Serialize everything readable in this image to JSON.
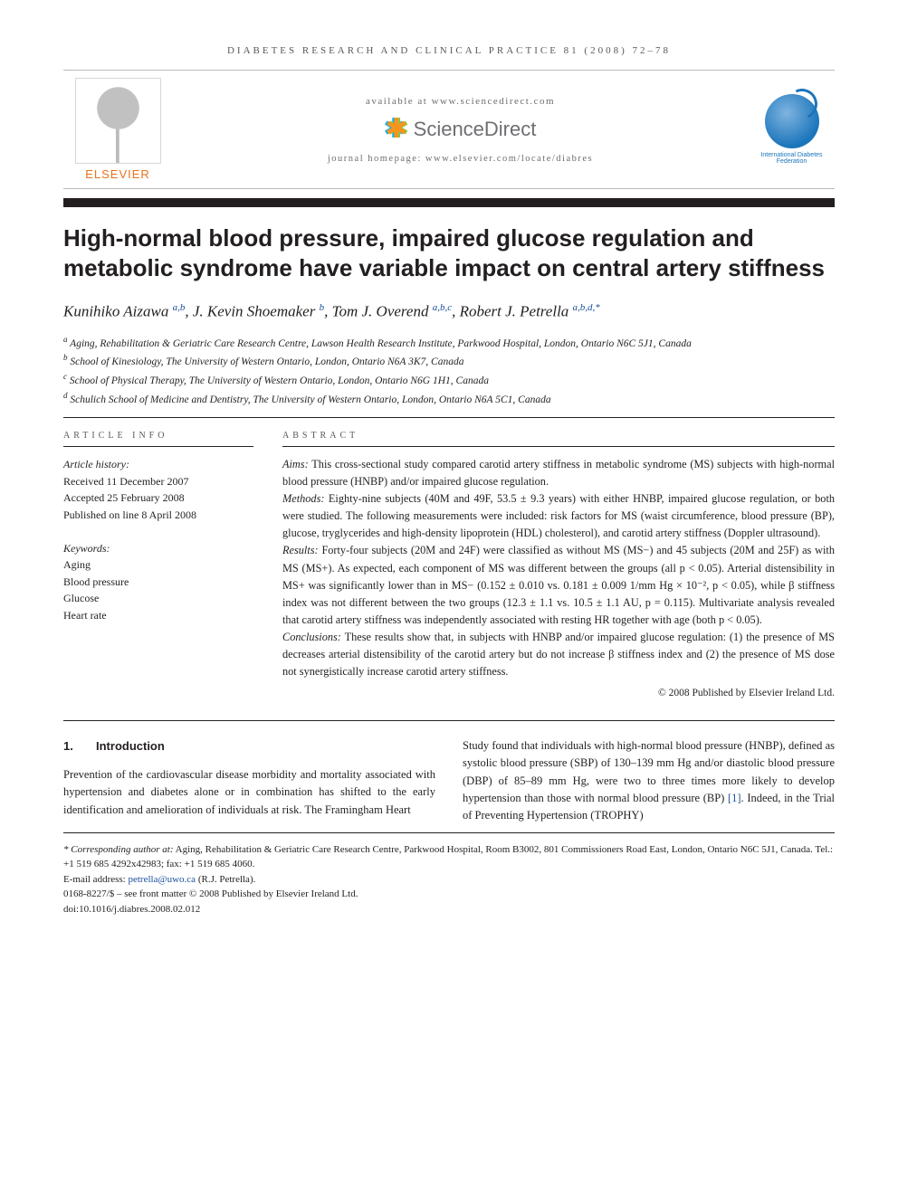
{
  "running_head": "DIABETES RESEARCH AND CLINICAL PRACTICE 81 (2008) 72–78",
  "masthead": {
    "publisher": "ELSEVIER",
    "available_line": "available at www.sciencedirect.com",
    "sd_brand": "ScienceDirect",
    "homepage_line": "journal homepage: www.elsevier.com/locate/diabres",
    "society": "International Diabetes Federation"
  },
  "title": "High-normal blood pressure, impaired glucose regulation and metabolic syndrome have variable impact on central artery stiffness",
  "authors_html": "Kunihiko Aizawa|a,b|, J. Kevin Shoemaker|b|, Tom J. Overend|a,b,c|, Robert J. Petrella|a,b,d,*|",
  "authors": [
    {
      "name": "Kunihiko Aizawa",
      "marks": "a,b"
    },
    {
      "name": "J. Kevin Shoemaker",
      "marks": "b"
    },
    {
      "name": "Tom J. Overend",
      "marks": "a,b,c"
    },
    {
      "name": "Robert J. Petrella",
      "marks": "a,b,d,*"
    }
  ],
  "affiliations": [
    {
      "mark": "a",
      "text": "Aging, Rehabilitation & Geriatric Care Research Centre, Lawson Health Research Institute, Parkwood Hospital, London, Ontario N6C 5J1, Canada"
    },
    {
      "mark": "b",
      "text": "School of Kinesiology, The University of Western Ontario, London, Ontario N6A 3K7, Canada"
    },
    {
      "mark": "c",
      "text": "School of Physical Therapy, The University of Western Ontario, London, Ontario N6G 1H1, Canada"
    },
    {
      "mark": "d",
      "text": "Schulich School of Medicine and Dentistry, The University of Western Ontario, London, Ontario N6A 5C1, Canada"
    }
  ],
  "info": {
    "label": "ARTICLE INFO",
    "history_hd": "Article history:",
    "history": [
      "Received 11 December 2007",
      "Accepted 25 February 2008",
      "Published on line 8 April 2008"
    ],
    "keywords_hd": "Keywords:",
    "keywords": [
      "Aging",
      "Blood pressure",
      "Glucose",
      "Heart rate"
    ]
  },
  "abstract": {
    "label": "ABSTRACT",
    "aims_hd": "Aims:",
    "aims": "This cross-sectional study compared carotid artery stiffness in metabolic syndrome (MS) subjects with high-normal blood pressure (HNBP) and/or impaired glucose regulation.",
    "methods_hd": "Methods:",
    "methods": "Eighty-nine subjects (40M and 49F, 53.5 ± 9.3 years) with either HNBP, impaired glucose regulation, or both were studied. The following measurements were included: risk factors for MS (waist circumference, blood pressure (BP), glucose, tryglycerides and high-density lipoprotein (HDL) cholesterol), and carotid artery stiffness (Doppler ultrasound).",
    "results_hd": "Results:",
    "results": "Forty-four subjects (20M and 24F) were classified as without MS (MS−) and 45 subjects (20M and 25F) as with MS (MS+). As expected, each component of MS was different between the groups (all p < 0.05). Arterial distensibility in MS+ was significantly lower than in MS− (0.152 ± 0.010 vs. 0.181 ± 0.009 1/mm Hg × 10⁻², p < 0.05), while β stiffness index was not different between the two groups (12.3 ± 1.1 vs. 10.5 ± 1.1 AU, p = 0.115). Multivariate analysis revealed that carotid artery stiffness was independently associated with resting HR together with age (both p < 0.05).",
    "conclusions_hd": "Conclusions:",
    "conclusions": "These results show that, in subjects with HNBP and/or impaired glucose regulation: (1) the presence of MS decreases arterial distensibility of the carotid artery but do not increase β stiffness index and (2) the presence of MS dose not synergistically increase carotid artery stiffness.",
    "copyright": "© 2008 Published by Elsevier Ireland Ltd."
  },
  "section1": {
    "num": "1.",
    "title": "Introduction",
    "left_para": "Prevention of the cardiovascular disease morbidity and mortality associated with hypertension and diabetes alone or in combination has shifted to the early identification and amelioration of individuals at risk. The Framingham Heart",
    "right_para_a": "Study found that individuals with high-normal blood pressure (HNBP), defined as systolic blood pressure (SBP) of 130–139 mm Hg and/or diastolic blood pressure (DBP) of 85–89 mm Hg, were two to three times more likely to develop hypertension than those with normal blood pressure (BP) ",
    "ref1": "[1]",
    "right_para_b": ". Indeed, in the Trial of Preventing Hypertension (TROPHY)"
  },
  "footnotes": {
    "corr_label": "* Corresponding author at:",
    "corr_text": " Aging, Rehabilitation & Geriatric Care Research Centre, Parkwood Hospital, Room B3002, 801 Commissioners Road East, London, Ontario N6C 5J1, Canada. Tel.: +1 519 685 4292x42983; fax: +1 519 685 4060.",
    "email_label": "E-mail address: ",
    "email": "petrella@uwo.ca",
    "email_tail": " (R.J. Petrella).",
    "issn_line": "0168-8227/$ – see front matter © 2008 Published by Elsevier Ireland Ltd.",
    "doi_line": "doi:10.1016/j.diabres.2008.02.012"
  },
  "colors": {
    "text": "#231f20",
    "muted": "#58595b",
    "orange": "#e9711c",
    "link": "#1b4f9c",
    "idf_blue": "#1b75bb"
  }
}
